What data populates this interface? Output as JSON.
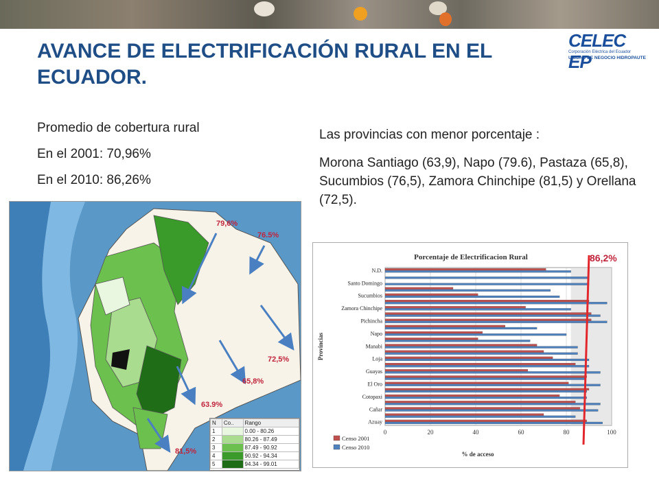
{
  "logo": {
    "name": "CELEC EP",
    "line1": "Corporación Eléctrica del Ecuador",
    "line2": "UNIDAD DE NEGOCIO HIDROPAUTE"
  },
  "title": "AVANCE DE ELECTRIFICACIÓN RURAL EN EL ECUADOR.",
  "left_text": [
    "Promedio de cobertura rural",
    "En el 2001: 70,96%",
    "En el 2010: 86,26%"
  ],
  "right_text": {
    "line1": "Las provincias con menor porcentaje :",
    "line2": "Morona Santiago (63,9), Napo (79.6), Pastaza (65,8), Sucumbios (76,5), Zamora Chinchipe (81,5)  y Orellana (72,5)."
  },
  "map_labels": [
    "79,6%",
    "76.5%",
    "72,5%",
    "65,8%",
    "63.9%",
    "81,5%"
  ],
  "map_legend": {
    "headers": [
      "N",
      "Co..",
      "Rango"
    ],
    "rows": [
      {
        "n": "1",
        "range": "0.00 - 80.26",
        "color": "#e9f7e0"
      },
      {
        "n": "2",
        "range": "80.26 - 87.49",
        "color": "#a9dc8e"
      },
      {
        "n": "3",
        "range": "87.49 - 90.92",
        "color": "#6cc04e"
      },
      {
        "n": "4",
        "range": "90.92 - 94.34",
        "color": "#3a9a2a"
      },
      {
        "n": "5",
        "range": "94.34 - 99.01",
        "color": "#1f6e17"
      }
    ]
  },
  "annotation": "86,2%",
  "chart_data": {
    "type": "bar",
    "orientation": "horizontal",
    "title": "Porcentaje de Electrificacion Rural",
    "xlabel": "% de acceso",
    "ylabel": "Provincias",
    "xlim": [
      0,
      100
    ],
    "xticks": [
      "0",
      "20",
      "40",
      "60",
      "80",
      "100"
    ],
    "categories": [
      "N.D.",
      "",
      "Santo Domingo",
      "",
      "Sucumbios",
      "",
      "Zamora Chinchipe",
      "",
      "Pichincha",
      "",
      "Napo",
      "",
      "Manabi",
      "",
      "Loja",
      "",
      "Guayas",
      "",
      "El Oro",
      "",
      "Cotopaxi",
      "",
      "Cañar",
      "",
      "Azuay"
    ],
    "category_labels_shown": [
      "N.D.",
      "Santo Domingo",
      "Sucumbios",
      "Zamora Chinchipe",
      "Pichincha",
      "Napo",
      "Manabi",
      "Loja",
      "Guayas",
      "El Oro",
      "Cotopaxi",
      "Cañar",
      "Azuay"
    ],
    "series": [
      {
        "name": "Censo 2001",
        "color": "#c0504d",
        "values": [
          71,
          0,
          0,
          30,
          41,
          90,
          62,
          91,
          91,
          53,
          43,
          41,
          67,
          70,
          74,
          84,
          63,
          89,
          81,
          90,
          77,
          84,
          86,
          70,
          89
        ]
      },
      {
        "name": "Censo 2010",
        "color": "#4f81bd",
        "values": [
          82,
          90,
          90,
          73,
          77,
          98,
          82,
          95,
          98,
          67,
          80,
          64,
          85,
          85,
          90,
          90,
          95,
          88,
          95,
          89,
          89,
          95,
          94,
          84,
          96
        ]
      }
    ],
    "legend_position": "bottom-left",
    "grid": true
  }
}
